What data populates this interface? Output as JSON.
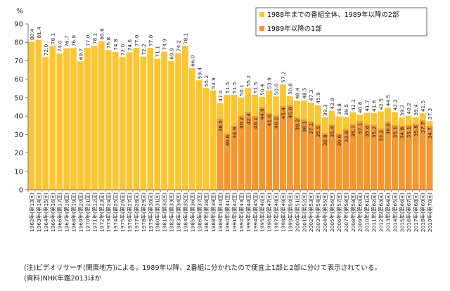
{
  "chart_data": {
    "type": "bar",
    "y_unit": "%",
    "ylim": [
      0,
      90
    ],
    "yticks": [
      0,
      10,
      20,
      30,
      40,
      50,
      60,
      70,
      80,
      90
    ],
    "grid": false,
    "legend_position": "top-right",
    "colors": {
      "series1": "#FFC531",
      "series2": "#F7952E",
      "axis": "#555555"
    },
    "categories": [
      "1962年(第13回)",
      "1963年(第14回)",
      "1964年(第15回)",
      "1965年(第16回)",
      "1966年(第17回)",
      "1967年(第18回)",
      "1968年(第19回)",
      "1969年(第20回)",
      "1970年(第21回)",
      "1971年(第22回)",
      "1972年(第23回)",
      "1973年(第24回)",
      "1974年(第25回)",
      "1975年(第26回)",
      "1976年(第27回)",
      "1977年(第28回)",
      "1978年(第29回)",
      "1979年(第30回)",
      "1980年(第31回)",
      "1981年(第32回)",
      "1982年(第33回)",
      "1983年(第34回)",
      "1984年(第35回)",
      "1985年(第36回)",
      "1986年(第37回)",
      "1987年(第38回)",
      "1988年(第39回)",
      "1989年(第40回)",
      "1990年(第41回)",
      "1991年(第42回)",
      "1992年(第43回)",
      "1993年(第44回)",
      "1994年(第45回)",
      "1995年(第46回)",
      "1996年(第47回)",
      "1997年(第48回)",
      "1998年(第49回)",
      "1999年(第50回)",
      "2000年(第51回)",
      "2001年(第52回)",
      "2002年(第53回)",
      "2003年(第54回)",
      "2004年(第55回)",
      "2005年(第56回)",
      "2006年(第57回)",
      "2007年(第58回)",
      "2008年(第59回)",
      "2009年(第60回)",
      "2010年(第61回)",
      "2011年(第62回)",
      "2012年(第63回)",
      "2013年(第64回)",
      "2014年(第65回)",
      "2015年(第66回)",
      "2016年(第67回)",
      "2017年(第68回)",
      "2018年(第69回)",
      "2019年(第70回)"
    ],
    "series": [
      {
        "name": "1988年までの番組全体、1989年以降の2部",
        "values": [
          80.4,
          81.4,
          72.0,
          78.1,
          74.0,
          76.7,
          76.9,
          69.7,
          77.0,
          78.1,
          80.6,
          75.8,
          74.8,
          72.0,
          74.6,
          77.0,
          72.2,
          77.0,
          71.1,
          74.9,
          69.9,
          74.2,
          78.1,
          66.0,
          59.4,
          55.2,
          53.9,
          47.0,
          51.5,
          51.5,
          50.1,
          55.2,
          51.5,
          50.4,
          53.9,
          50.6,
          57.2,
          50.8,
          48.4,
          48.5,
          47.3,
          45.9,
          39.3,
          42.9,
          39.8,
          39.5,
          42.1,
          40.8,
          41.7,
          41.6,
          42.5,
          44.5,
          42.2,
          39.2,
          40.2,
          39.4,
          41.5,
          37.3
        ]
      },
      {
        "name": "1989年以降の1部",
        "values": [
          null,
          null,
          null,
          null,
          null,
          null,
          null,
          null,
          null,
          null,
          null,
          null,
          null,
          null,
          null,
          null,
          null,
          null,
          null,
          null,
          null,
          null,
          null,
          null,
          null,
          null,
          null,
          38.5,
          30.6,
          34.9,
          40.2,
          42.4,
          40.1,
          44.9,
          41.6,
          40.2,
          45.4,
          45.8,
          39.2,
          38.1,
          37.1,
          35.5,
          30.8,
          35.4,
          30.6,
          32.8,
          35.7,
          37.1,
          35.6,
          35.2,
          33.2,
          36.9,
          35.1,
          34.8,
          35.1,
          35.8,
          37.7,
          34.7
        ]
      }
    ]
  },
  "notes": {
    "note1": "(注)ビデオリサーチ(関東地方)による。1989年以降、2番組に分かれたので便宜上1部と2部に分けて表示されている。",
    "source": "(資料)NHK年鑑2013ほか"
  }
}
